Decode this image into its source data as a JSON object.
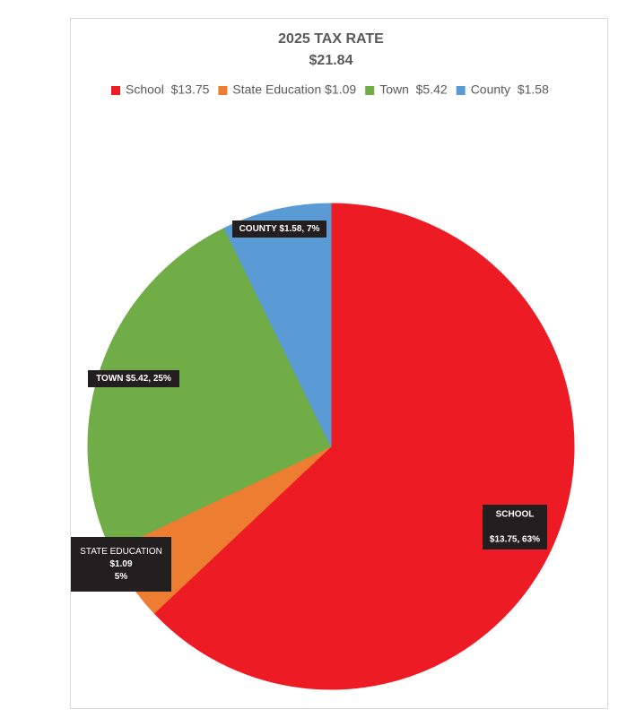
{
  "chart_data": {
    "type": "pie",
    "title": "2025 TAX RATE",
    "subtitle": "$21.84",
    "categories": [
      "School  $13.75",
      "State Education $1.09",
      "Town  $5.42",
      "County  $1.58"
    ],
    "values": [
      13.75,
      1.09,
      5.42,
      1.58
    ],
    "colors": [
      "#ed1c24",
      "#ed7d31",
      "#70ad47",
      "#5b9bd5"
    ],
    "data_labels": [
      [
        "SCHOOL",
        "$13.75, 63%"
      ],
      [
        "STATE EDUCATION",
        "$1.09",
        "5%"
      ],
      [
        "TOWN  $5.42, 25%"
      ],
      [
        "COUNTY  $1.58, 7%"
      ]
    ],
    "legend": "top"
  }
}
